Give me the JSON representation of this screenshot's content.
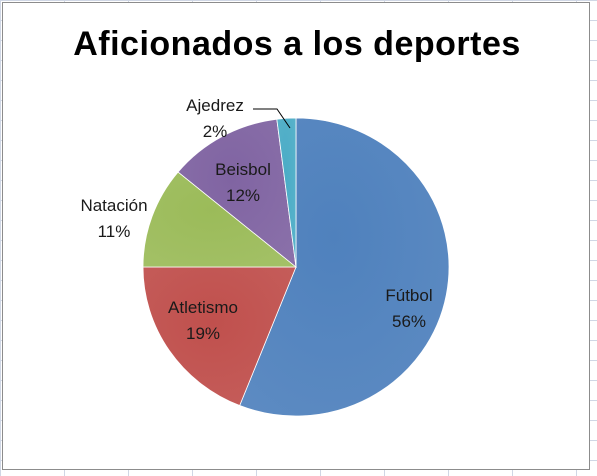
{
  "chart_data": {
    "type": "pie",
    "title": "Aficionados a los deportes",
    "slices": [
      {
        "label": "Fútbol",
        "value": 56,
        "value_label": "56%",
        "color": "#4F81BD"
      },
      {
        "label": "Atletismo",
        "value": 19,
        "value_label": "19%",
        "color": "#C0504D"
      },
      {
        "label": "Natación",
        "value": 11,
        "value_label": "11%",
        "color": "#9BBB59"
      },
      {
        "label": "Beisbol",
        "value": 12,
        "value_label": "12%",
        "color": "#8064A2"
      },
      {
        "label": "Ajedrez",
        "value": 2,
        "value_label": "2%",
        "color": "#4BACC6"
      }
    ],
    "legend": "none",
    "grid": false
  }
}
